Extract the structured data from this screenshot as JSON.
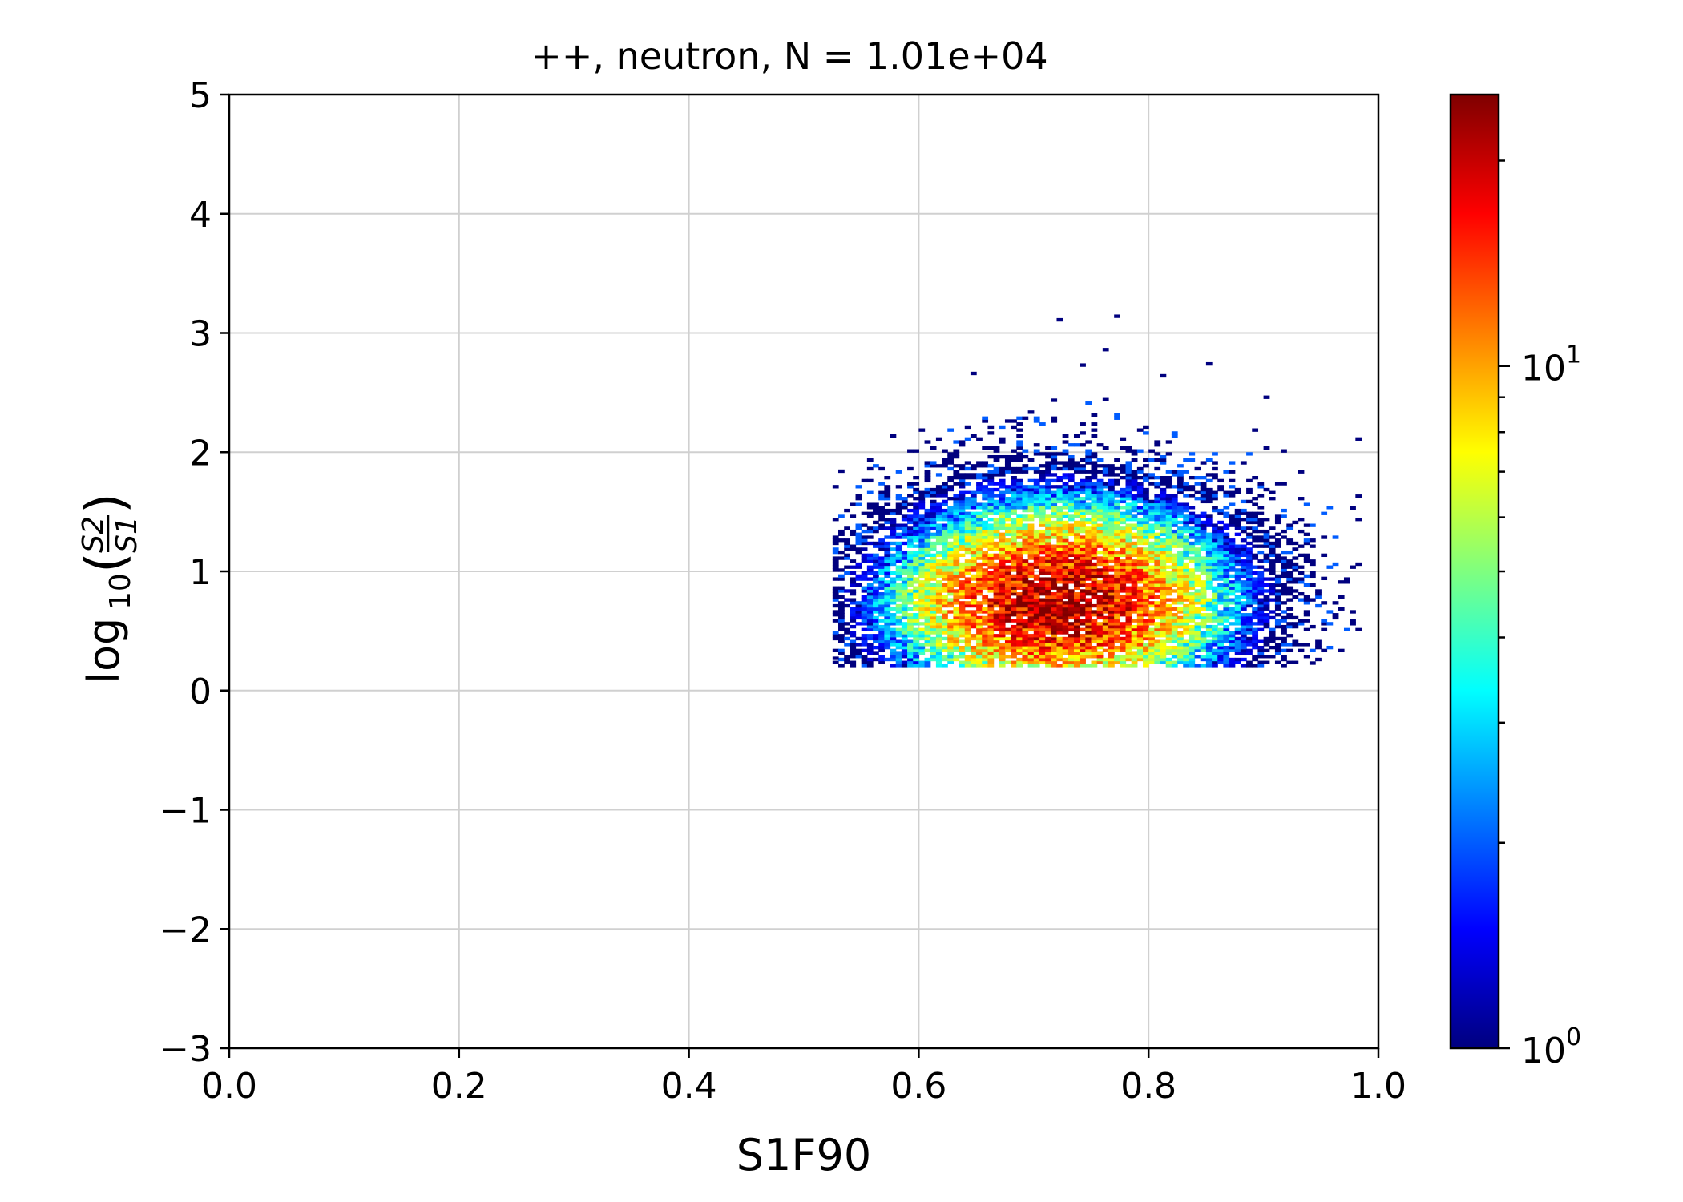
{
  "chart_data": {
    "type": "heatmap",
    "title": "++, neutron, N = 1.01e+04",
    "xlabel": "S1F90",
    "ylabel": {
      "prefix": "log",
      "subscript": "10",
      "numerator": "S2",
      "denominator": "S1"
    },
    "xlim": [
      0.0,
      1.0
    ],
    "ylim": [
      -3,
      5
    ],
    "x_ticks": [
      "0.0",
      "0.2",
      "0.4",
      "0.6",
      "0.8",
      "1.0"
    ],
    "x_tick_values": [
      0.0,
      0.2,
      0.4,
      0.6,
      0.8,
      1.0
    ],
    "y_ticks": [
      "−3",
      "−2",
      "−1",
      "0",
      "1",
      "2",
      "3",
      "4",
      "5"
    ],
    "y_tick_values": [
      -3,
      -2,
      -1,
      0,
      1,
      2,
      3,
      4,
      5
    ],
    "grid": true,
    "colormap": "jet",
    "colorbar": {
      "scale": "log",
      "range": [
        1,
        25
      ],
      "tick_labels": [
        {
          "base": "10",
          "exp": "0",
          "value": 1
        },
        {
          "base": "10",
          "exp": "1",
          "value": 10
        }
      ],
      "minor_ticks": [
        2,
        3,
        4,
        5,
        6,
        7,
        8,
        9,
        20
      ]
    },
    "colors": {
      "jet": [
        "#00007f",
        "#0000ff",
        "#007fff",
        "#00ffff",
        "#7fff7f",
        "#ffff00",
        "#ff7f00",
        "#ff0000",
        "#7f0000"
      ]
    },
    "bin_size": {
      "x": 0.005,
      "y": 0.025
    },
    "distribution": {
      "x_center": 0.72,
      "x_sigma": 0.075,
      "x_range": [
        0.525,
        0.985
      ],
      "y_range": [
        0.2,
        3.15
      ],
      "y_mode": 0.72,
      "peak_count": 22
    }
  }
}
